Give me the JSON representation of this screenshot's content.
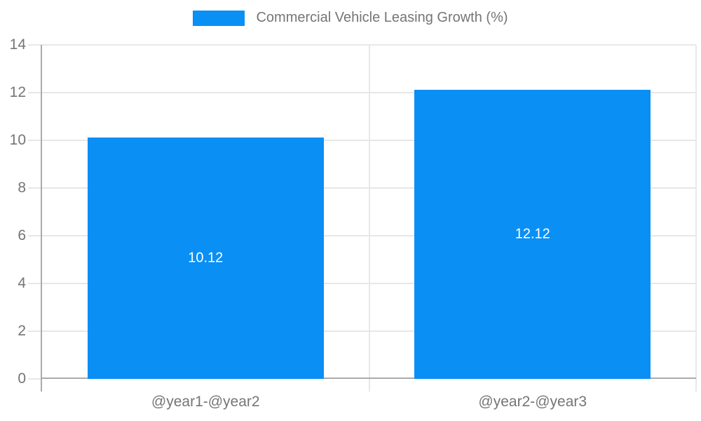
{
  "chart_data": {
    "type": "bar",
    "title": "Commercial Vehicle Leasing Growth (%)",
    "legend_entries": [
      "Commercial Vehicle Leasing Growth (%)"
    ],
    "legend_position": "top",
    "categories": [
      "@year1-@year2",
      "@year2-@year3"
    ],
    "values": [
      10.12,
      12.12
    ],
    "value_labels": [
      "10.12",
      "12.12"
    ],
    "xlabel": "",
    "ylabel": "",
    "ylim": [
      0,
      14
    ],
    "yticks": [
      0,
      2,
      4,
      6,
      8,
      10,
      12,
      14
    ],
    "grid": true,
    "colors": {
      "bar": "#0a8ff5",
      "gridline": "#e7e7e7",
      "axis": "#ababab",
      "tick_text": "#757575",
      "value_text": "#ffffff"
    }
  }
}
